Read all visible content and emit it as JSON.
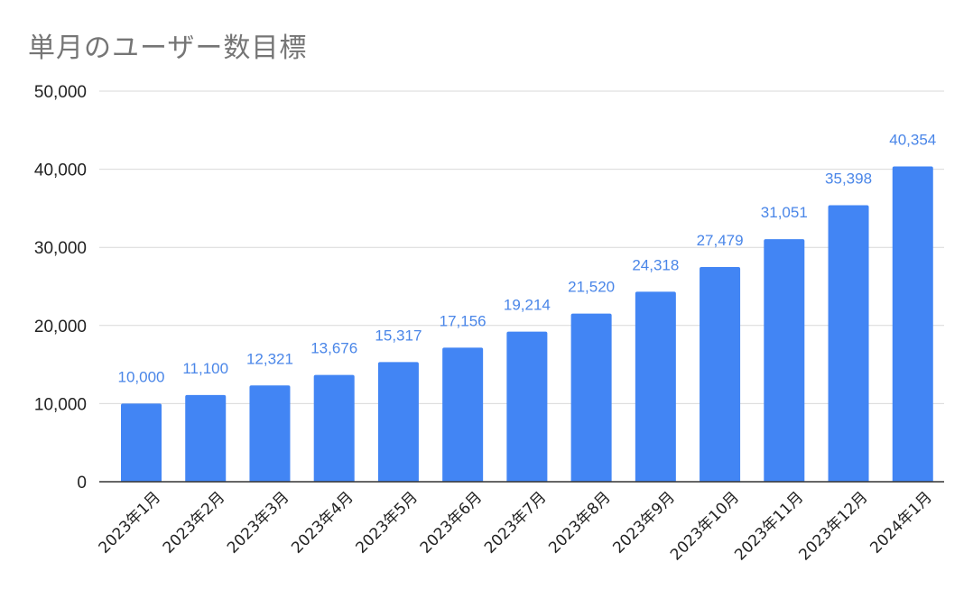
{
  "chart_data": {
    "type": "bar",
    "title": "単月のユーザー数目標",
    "xlabel": "",
    "ylabel": "",
    "ylim": [
      0,
      50000
    ],
    "yticks": [
      0,
      10000,
      20000,
      30000,
      40000,
      50000
    ],
    "ytick_labels": [
      "0",
      "10,000",
      "20,000",
      "30,000",
      "40,000",
      "50,000"
    ],
    "categories": [
      "2023年1月",
      "2023年2月",
      "2023年3月",
      "2023年4月",
      "2023年5月",
      "2023年6月",
      "2023年7月",
      "2023年8月",
      "2023年9月",
      "2023年10月",
      "2023年11月",
      "2023年12月",
      "2024年1月"
    ],
    "values": [
      10000,
      11100,
      12321,
      13676,
      15317,
      17156,
      19214,
      21520,
      24318,
      27479,
      31051,
      35398,
      40354
    ],
    "data_labels": [
      "10,000",
      "11,100",
      "12,321",
      "13,676",
      "15,317",
      "17,156",
      "19,214",
      "21,520",
      "24,318",
      "27,479",
      "31,051",
      "35,398",
      "40,354"
    ],
    "grid": true,
    "legend": "none",
    "colors": {
      "bar": "#4285f4",
      "data_label": "#4a86e8",
      "grid": "#d9d9d9",
      "axis": "#333333",
      "title": "#757575"
    }
  }
}
